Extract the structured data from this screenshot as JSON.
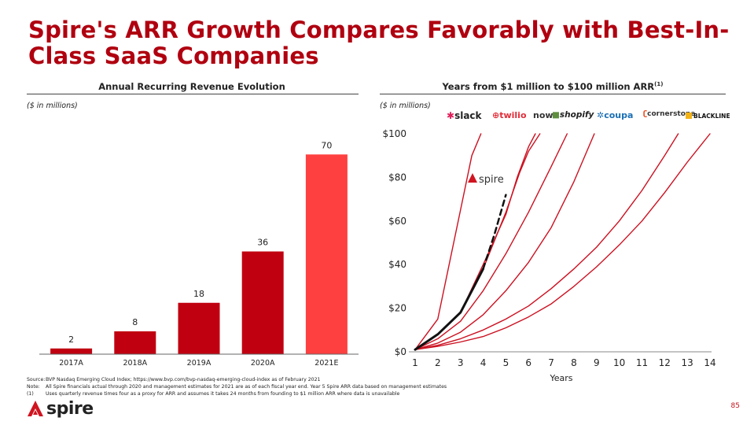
{
  "title": "Spire's ARR Growth Compares Favorably with Best-In-Class SaaS Companies",
  "left_panel": {
    "heading": "Annual Recurring Revenue Evolution",
    "unit_note": "($ in millions)"
  },
  "right_panel": {
    "heading": "Years from $1 million to $100 million ARR",
    "heading_sup": "(1)",
    "unit_note": "($ in millions)",
    "logos": [
      "slack",
      "twilio",
      "now",
      "shopify",
      "coupa",
      "cornerstone",
      "BLACKLINE"
    ],
    "spire_label": "spire"
  },
  "chart_data": [
    {
      "type": "bar",
      "title": "Annual Recurring Revenue Evolution",
      "categories": [
        "2017A",
        "2018A",
        "2019A",
        "2020A",
        "2021E"
      ],
      "values": [
        2,
        8,
        18,
        36,
        70
      ],
      "colors": [
        "#c00010",
        "#c00010",
        "#c00010",
        "#c00010",
        "#ff4040"
      ],
      "ylim": [
        0,
        80
      ],
      "xlabel": "",
      "ylabel": "",
      "grid": false
    },
    {
      "type": "line",
      "title": "Years from $1 million to $100 million ARR",
      "xlabel": "Years",
      "ylabel": "",
      "x_ticks": [
        1,
        2,
        3,
        4,
        5,
        6,
        7,
        8,
        9,
        10,
        11,
        12,
        13,
        14
      ],
      "y_ticks": [
        "$0",
        "$20",
        "$40",
        "$60",
        "$80",
        "$100"
      ],
      "y_tick_values": [
        0,
        20,
        40,
        60,
        80,
        100
      ],
      "xlim": [
        1,
        14
      ],
      "ylim": [
        0,
        100
      ],
      "grid": false,
      "series": [
        {
          "color": "#cc1020",
          "x": [
            1,
            2,
            3,
            3.5,
            3.9
          ],
          "y": [
            1,
            15,
            65,
            90,
            100
          ]
        },
        {
          "color": "#cc1020",
          "x": [
            1,
            2,
            3,
            4,
            5,
            5.5,
            6,
            6.3
          ],
          "y": [
            1,
            8,
            18,
            40,
            63,
            80,
            94,
            100
          ]
        },
        {
          "color": "#cc1020",
          "x": [
            1,
            2,
            3,
            4,
            5,
            5.6,
            6,
            6.5
          ],
          "y": [
            1,
            8,
            18,
            38,
            64,
            82,
            92,
            100
          ]
        },
        {
          "color": "#cc1020",
          "x": [
            1,
            2,
            3,
            4,
            5,
            6,
            7,
            7.7
          ],
          "y": [
            1,
            6,
            14,
            28,
            45,
            64,
            85,
            100
          ]
        },
        {
          "color": "#cc1020",
          "x": [
            1,
            2,
            3,
            4,
            5,
            6,
            7,
            8,
            8.9
          ],
          "y": [
            1,
            4,
            9,
            17,
            28,
            41,
            57,
            78,
            100
          ]
        },
        {
          "color": "#cc1020",
          "x": [
            1,
            2,
            3,
            4,
            5,
            6,
            7,
            8,
            9,
            10,
            11,
            12,
            12.6
          ],
          "y": [
            1,
            3,
            6,
            10,
            15,
            21,
            29,
            38,
            48,
            60,
            74,
            90,
            100
          ]
        },
        {
          "color": "#cc1020",
          "x": [
            1,
            2,
            3,
            4,
            5,
            6,
            7,
            8,
            9,
            10,
            11,
            12,
            13,
            14
          ],
          "y": [
            1,
            2.5,
            4.5,
            7,
            11,
            16,
            22,
            30,
            39,
            49,
            60,
            73,
            87,
            100
          ]
        },
        {
          "color": "#111111",
          "x": [
            1,
            2,
            3,
            3.6,
            4
          ],
          "y": [
            1,
            8,
            18,
            30,
            38
          ],
          "dashed": false,
          "width": 3
        },
        {
          "color": "#111111",
          "x": [
            4,
            4.5,
            5
          ],
          "y": [
            38,
            54,
            72
          ],
          "dashed": true,
          "width": 2.5
        }
      ]
    }
  ],
  "footnotes": [
    {
      "key": "Source:",
      "text": "BVP Nasdaq Emerging Cloud Index; https://www.bvp.com/bvp-nasdaq-emerging-cloud-index as of February 2021"
    },
    {
      "key": "Note:",
      "text": "All Spire financials actual through 2020 and management estimates for 2021 are as of each fiscal year end. Year 5 Spire ARR data based on management estimates"
    },
    {
      "key": "(1)",
      "text": "Uses quarterly revenue times four as a proxy for ARR and assumes it takes 24 months from founding to $1 million ARR where data is unavailable"
    }
  ],
  "footer": {
    "brand": "spire",
    "page_number": "85"
  }
}
